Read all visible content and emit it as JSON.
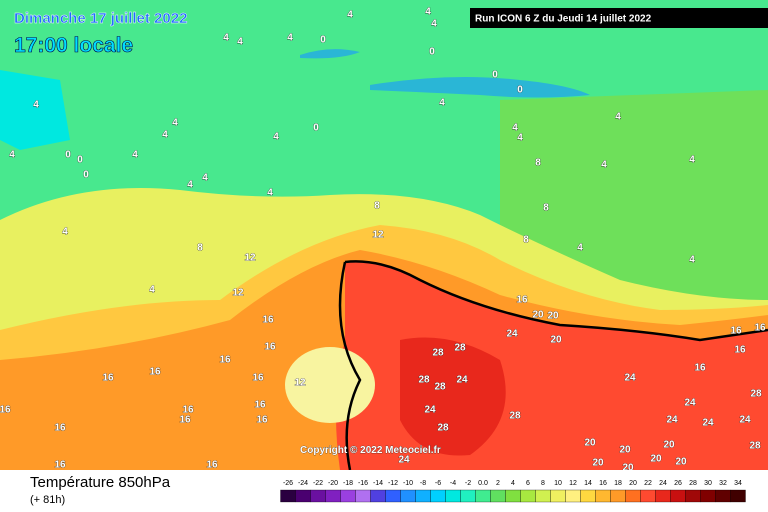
{
  "header": {
    "date": "Dimanche 17 juillet 2022",
    "time": "17:00 locale",
    "run": "Run ICON 6 Z du Jeudi 14 juillet 2022"
  },
  "map": {
    "isotherm_labels": [
      "4",
      "4",
      "4",
      "4",
      "4",
      "4",
      "0",
      "0",
      "0",
      "0",
      "4",
      "4",
      "4",
      "4",
      "4",
      "4",
      "0",
      "4",
      "4",
      "4",
      "0",
      "0",
      "4",
      "0",
      "4",
      "4",
      "4",
      "8",
      "8",
      "4",
      "4",
      "8",
      "4",
      "8",
      "12",
      "4",
      "12",
      "12",
      "8",
      "4",
      "4",
      "16",
      "16",
      "20",
      "20",
      "24",
      "20",
      "16",
      "16",
      "28",
      "28",
      "16",
      "16",
      "16",
      "16",
      "12",
      "16",
      "28",
      "28",
      "24",
      "24",
      "16",
      "16",
      "16",
      "16",
      "16",
      "16",
      "16",
      "24",
      "28",
      "24",
      "24",
      "24",
      "28",
      "24",
      "16",
      "16",
      "28",
      "24",
      "20",
      "20",
      "20",
      "20",
      "20",
      "20",
      "20",
      "28",
      "16"
    ]
  },
  "copyright": "Copyright © 2022 Meteociel.fr",
  "legend": {
    "title": "Température 850hPa",
    "lead": "(+ 81h)",
    "scale": [
      "-26",
      "-24",
      "-22",
      "-20",
      "-18",
      "-16",
      "-14",
      "-12",
      "-10",
      "-8",
      "-6",
      "-4",
      "-2",
      "0.0",
      "2",
      "4",
      "6",
      "8",
      "10",
      "12",
      "14",
      "16",
      "18",
      "20",
      "22",
      "24",
      "26",
      "28",
      "30",
      "32",
      "34"
    ]
  }
}
